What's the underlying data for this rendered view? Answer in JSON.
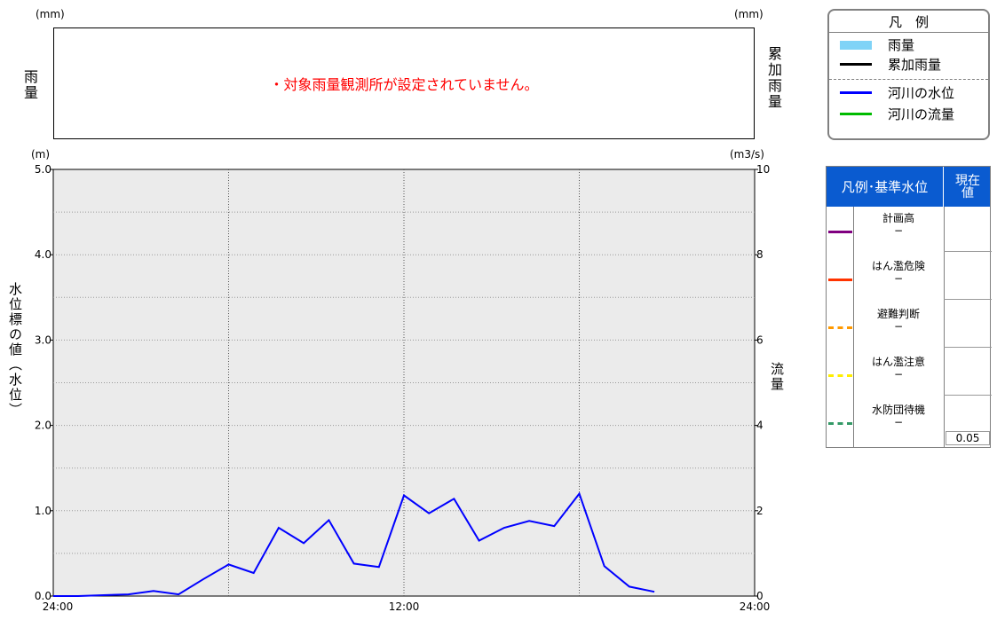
{
  "rain_panel": {
    "left_unit": "(mm)",
    "right_unit": "(mm)",
    "left_label": "雨量",
    "right_label": "累加雨量",
    "message": "・対象雨量観測所が設定されていません。",
    "message_color": "#ff0000"
  },
  "legend": {
    "title": "凡　例",
    "items": [
      {
        "label": "雨量",
        "color": "#7fd3f7"
      },
      {
        "label": "累加雨量",
        "color": "#000000"
      },
      {
        "label": "河川の水位",
        "color": "#0000ff"
      },
      {
        "label": "河川の流量",
        "color": "#00bb00"
      }
    ]
  },
  "standard_table": {
    "header_label": "凡例･基準水位",
    "header_value": "現在値",
    "header_color": "#0a5bd0",
    "rows": [
      {
        "name": "計画高",
        "value_text": "−",
        "color": "#800080",
        "style": "solid"
      },
      {
        "name": "はん濫危険",
        "value_text": "−",
        "color": "#ff3300",
        "style": "solid"
      },
      {
        "name": "避難判断",
        "value_text": "−",
        "color": "#ff9900",
        "style": "dashed"
      },
      {
        "name": "はん濫注意",
        "value_text": "−",
        "color": "#ffee00",
        "style": "dashed"
      },
      {
        "name": "水防団待機",
        "value_text": "−",
        "color": "#339966",
        "style": "dashed"
      }
    ],
    "current_value": "0.05"
  },
  "chart_data": {
    "type": "line",
    "title": "",
    "left_unit": "(m)",
    "right_unit": "(m3/s)",
    "ylabel": "水位標の値（水位）",
    "y2label": "流量",
    "ylim": [
      0,
      5
    ],
    "y2lim": [
      0,
      10
    ],
    "xlim": [
      0,
      28
    ],
    "yticks": [
      {
        "v": 0,
        "label": "0.0"
      },
      {
        "v": 1,
        "label": "1.0"
      },
      {
        "v": 2,
        "label": "2.0"
      },
      {
        "v": 3,
        "label": "3.0"
      },
      {
        "v": 4,
        "label": "4.0"
      },
      {
        "v": 5,
        "label": "5.0"
      }
    ],
    "y2ticks": [
      {
        "v": 0,
        "label": "0"
      },
      {
        "v": 2,
        "label": "2"
      },
      {
        "v": 4,
        "label": "4"
      },
      {
        "v": 6,
        "label": "6"
      },
      {
        "v": 8,
        "label": "8"
      },
      {
        "v": 10,
        "label": "10"
      }
    ],
    "xticks": [
      {
        "v": 0,
        "label": "24:00"
      },
      {
        "v": 14,
        "label": "12:00"
      },
      {
        "v": 28,
        "label": "24:00"
      }
    ],
    "grid": true,
    "current_time_x": 28,
    "series": [
      {
        "name": "河川の水位",
        "color": "#0000ff",
        "x": [
          0,
          1,
          2,
          3,
          4,
          5,
          6,
          7,
          8,
          9,
          10,
          11,
          12,
          13,
          14,
          15,
          16,
          17,
          18,
          19,
          20,
          21,
          22,
          23,
          24,
          25,
          26,
          27,
          28
        ],
        "values": [
          0.0,
          0.0,
          0.01,
          0.02,
          0.06,
          0.02,
          0.2,
          0.37,
          0.27,
          0.8,
          0.62,
          0.89,
          0.38,
          0.34,
          1.18,
          0.97,
          1.14,
          0.65,
          0.8,
          0.88,
          0.82,
          1.2,
          0.35,
          0.11,
          0.05,
          null,
          null,
          null,
          null
        ]
      }
    ]
  }
}
